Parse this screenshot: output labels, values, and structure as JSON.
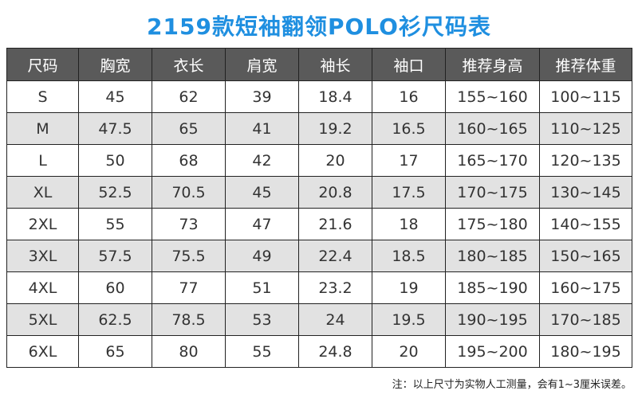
{
  "title": "2159款短袖翻领POLO衫尺码表",
  "table": {
    "headers": [
      "尺码",
      "胸宽",
      "衣长",
      "肩宽",
      "袖长",
      "袖口",
      "推荐身高",
      "推荐体重"
    ],
    "rows": [
      [
        "S",
        "45",
        "62",
        "39",
        "18.4",
        "16",
        "155~160",
        "100~115"
      ],
      [
        "M",
        "47.5",
        "65",
        "41",
        "19.2",
        "16.5",
        "160~165",
        "110~125"
      ],
      [
        "L",
        "50",
        "68",
        "42",
        "20",
        "17",
        "165~170",
        "120~135"
      ],
      [
        "XL",
        "52.5",
        "70.5",
        "45",
        "20.8",
        "17.5",
        "170~175",
        "130~145"
      ],
      [
        "2XL",
        "55",
        "73",
        "47",
        "21.6",
        "18",
        "175~180",
        "140~155"
      ],
      [
        "3XL",
        "57.5",
        "75.5",
        "49",
        "22.4",
        "18.5",
        "180~185",
        "150~165"
      ],
      [
        "4XL",
        "60",
        "77",
        "51",
        "23.2",
        "19",
        "185~190",
        "160~175"
      ],
      [
        "5XL",
        "62.5",
        "78.5",
        "53",
        "24",
        "19.5",
        "190~195",
        "170~185"
      ],
      [
        "6XL",
        "65",
        "80",
        "55",
        "24.8",
        "20",
        "195~200",
        "180~195"
      ]
    ]
  },
  "note": "注：以上尺寸为实物人工测量，会有1~3厘米误差。",
  "colors": {
    "title": "#1f8fe0",
    "header_bg": "#5a5a5a",
    "stripe_bg": "#e2e2e2"
  }
}
